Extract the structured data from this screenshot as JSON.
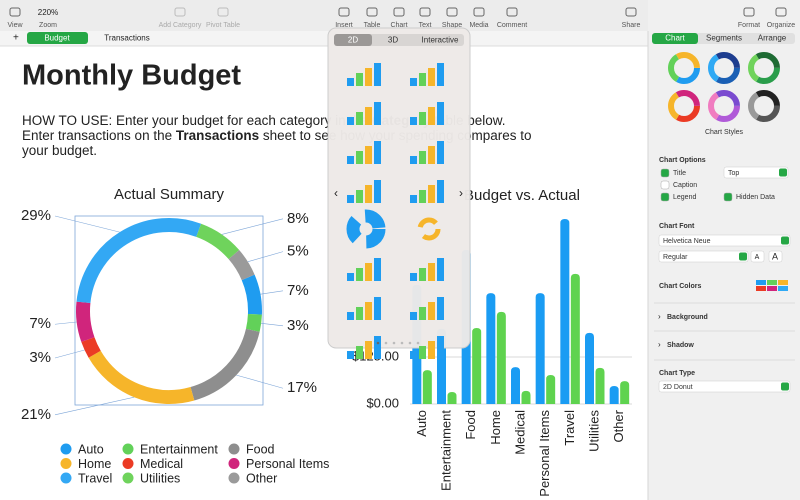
{
  "toolbar": {
    "zoom": "220%",
    "items": [
      "View",
      "Zoom",
      "Add Category",
      "Pivot Table",
      "Insert",
      "Table",
      "Chart",
      "Text",
      "Shape",
      "Media",
      "Comment",
      "Share",
      "Format",
      "Organize"
    ]
  },
  "sheet_tabs": [
    "Budget",
    "Transactions"
  ],
  "document": {
    "title": "Monthly Budget",
    "instructions": [
      [
        {
          "text": "HOW TO USE: Enter your budget for each category in the "
        },
        {
          "text": "Category",
          "bold": true
        },
        {
          "text": " table below."
        }
      ],
      [
        {
          "text": "Enter transactions on the "
        },
        {
          "text": "Transactions",
          "bold": true
        },
        {
          "text": " sheet to see how your spending compares to"
        }
      ],
      [
        {
          "text": "your budget."
        }
      ]
    ]
  },
  "chart_picker": {
    "tabs": [
      "2D",
      "3D",
      "Interactive"
    ]
  },
  "chart_data": [
    {
      "type": "donut",
      "title": "Actual Summary",
      "categories": [
        "Auto",
        "Entertainment",
        "Food",
        "Home",
        "Medical",
        "Personal Items",
        "Travel",
        "Utilities",
        "Other"
      ],
      "values": [
        7,
        3,
        17,
        21,
        3,
        7,
        29,
        8,
        5
      ],
      "value_labels": [
        "7%",
        "3%",
        "17%",
        "21%",
        "3%",
        "7%",
        "29%",
        "8%",
        "5%"
      ],
      "colors": [
        "#1f9cf0",
        "#62d159",
        "#8e8e8e",
        "#f6b52a",
        "#eb3b24",
        "#d0257c",
        "#33a8f4",
        "#6fd35c",
        "#9a9a9a"
      ]
    },
    {
      "type": "bar",
      "title": "Budget vs. Actual",
      "categories": [
        "Auto",
        "Entertainment",
        "Food",
        "Home",
        "Medical",
        "Personal Items",
        "Travel",
        "Utilities",
        "Other"
      ],
      "series": [
        {
          "color": "#1a9cf3",
          "values": [
            317,
            200,
            410,
            295,
            98,
            295,
            492,
            189,
            48
          ]
        },
        {
          "color": "#5fd34f",
          "values": [
            90,
            32,
            202,
            245,
            35,
            77,
            346,
            96,
            61
          ]
        }
      ],
      "ylim": [
        0,
        500
      ],
      "yticks": [
        {
          "value": 0,
          "label": "$0.00"
        },
        {
          "value": 125,
          "label": "$125.00"
        }
      ],
      "grid": true
    }
  ],
  "inspector": {
    "tabs": [
      "Chart",
      "Segments",
      "Arrange"
    ],
    "chart_styles_label": "Chart Styles",
    "chart_options": {
      "heading": "Chart Options",
      "title": "Title",
      "title_position": "Top",
      "caption": "Caption",
      "legend": "Legend",
      "hidden_data": "Hidden Data"
    },
    "chart_font": {
      "heading": "Chart Font",
      "family": "Helvetica Neue",
      "style": "Regular",
      "smaller": "A",
      "larger": "A"
    },
    "chart_colors": "Chart Colors",
    "background": "Background",
    "shadow": "Shadow",
    "chart_type": {
      "heading": "Chart Type",
      "value": "2D Donut"
    }
  }
}
